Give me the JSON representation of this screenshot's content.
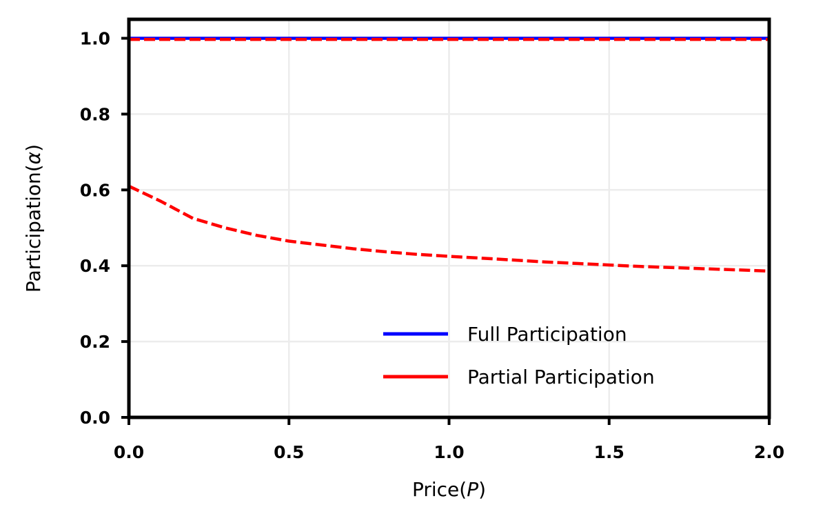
{
  "chart_data": {
    "type": "line",
    "xlabel_main": "Price(",
    "xlabel_var": "P",
    "xlabel_end": ")",
    "ylabel_main": "Participation(",
    "ylabel_var": "α",
    "ylabel_end": ")",
    "xlim": [
      0.0,
      2.0
    ],
    "ylim": [
      0.0,
      1.05
    ],
    "xticks": [
      "0.0",
      "0.5",
      "1.0",
      "1.5",
      "2.0"
    ],
    "yticks": [
      "0.0",
      "0.2",
      "0.4",
      "0.6",
      "0.8",
      "1.0"
    ],
    "grid": true,
    "legend_position": "lower-right",
    "series": [
      {
        "name": "Full Participation",
        "color": "#0000ff",
        "style": "solid",
        "x": [
          0.0,
          2.0
        ],
        "y": [
          1.0,
          1.0
        ]
      },
      {
        "name": "Partial Participation",
        "color": "#ff0000",
        "style": "dashed",
        "x": [
          0.0,
          0.1,
          0.2,
          0.3,
          0.4,
          0.5,
          0.6,
          0.7,
          0.8,
          0.9,
          1.0,
          1.1,
          1.2,
          1.3,
          1.4,
          1.5,
          1.6,
          1.7,
          1.8,
          1.9,
          2.0
        ],
        "y": [
          0.61,
          0.57,
          0.525,
          0.5,
          0.48,
          0.465,
          0.455,
          0.445,
          0.437,
          0.43,
          0.425,
          0.42,
          0.415,
          0.41,
          0.406,
          0.402,
          0.398,
          0.395,
          0.392,
          0.389,
          0.386
        ]
      },
      {
        "name": "",
        "color": "#ff0000",
        "style": "dashed",
        "x": [
          0.0,
          2.0
        ],
        "y": [
          0.997,
          0.997
        ]
      }
    ]
  }
}
